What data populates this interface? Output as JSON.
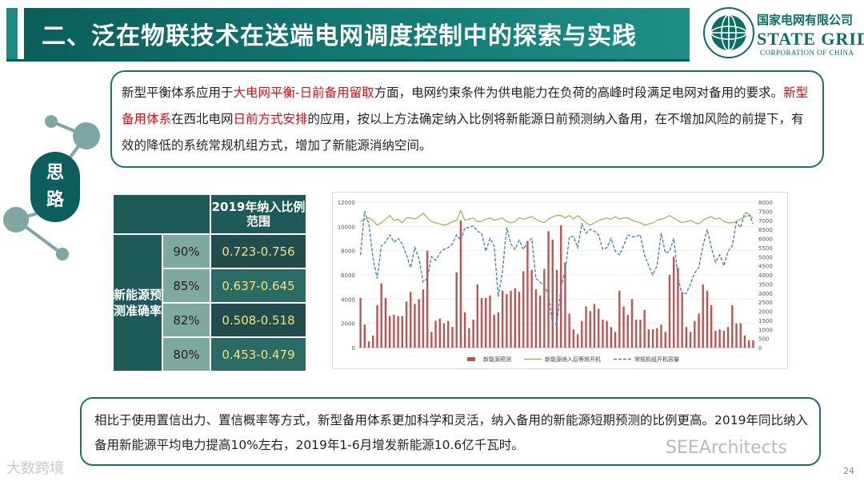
{
  "title": "二、泛在物联技术在送端电网调度控制中的探索与实践",
  "logo": {
    "cn_name": "国家电网有限公司",
    "en_name": "STATE GRID",
    "en_sub": "CORPORATION OF CHINA",
    "icon": "state-grid-globe-icon"
  },
  "badge": {
    "line1": "思",
    "line2": "路"
  },
  "idea": {
    "segments": [
      "新型平衡体系应用于",
      "大电网平衡-日前备用留取",
      "方面，电网约束条件为供电能力在负荷的高峰时段满足电网对备用的要求。",
      "新型备用体系",
      "在西北电网",
      "日前方式安排",
      "的应用，按以上方法确定纳入比例将新能源日前预测纳入备用，在不增加风险的前提下，有效的降低的系统常规机组方式，增加了新能源消纳空间。"
    ]
  },
  "table": {
    "header": "2019年纳入比例范围",
    "row_label": "新能源预测准确率",
    "rows": [
      {
        "pct": "90%",
        "range": "0.723-0.756"
      },
      {
        "pct": "85%",
        "range": "0.637-0.645"
      },
      {
        "pct": "82%",
        "range": "0.508-0.518"
      },
      {
        "pct": "80%",
        "range": "0.453-0.479"
      }
    ]
  },
  "chart_data": {
    "type": "bar",
    "title": "",
    "xlabel": "",
    "ylabel": "",
    "ylim": [
      0,
      12000
    ],
    "y2lim": [
      0,
      8000
    ],
    "yticks": [
      "0",
      "2000",
      "4000",
      "6000",
      "8000",
      "10000",
      "12000"
    ],
    "y2ticks": [
      "0",
      "500",
      "1000",
      "1500",
      "2000",
      "2500",
      "3000",
      "3500",
      "4000",
      "4500",
      "5000",
      "5500",
      "6000",
      "6500",
      "7000",
      "7500",
      "8000"
    ],
    "series": [
      {
        "name": "新能源预测",
        "type": "bar",
        "color": "#c0504d",
        "axis": "left",
        "values": [
          4100,
          1900,
          500,
          1000,
          3500,
          5300,
          4100,
          2600,
          2700,
          2600,
          2600,
          3800,
          4600,
          3600,
          4000,
          4800,
          8000,
          1300,
          2200,
          2400,
          2000,
          2200,
          1700,
          6200,
          10500,
          2900,
          1600,
          2300,
          5200,
          4100,
          4100,
          4300,
          2700,
          2900,
          4700,
          4400,
          4700,
          4900,
          4600,
          6300,
          8800,
          6400,
          4800,
          4300,
          6500,
          9600,
          8900,
          6400,
          10100,
          7000,
          2800,
          1500,
          1100,
          2200,
          3400,
          3000,
          3600,
          3200,
          2300,
          2200,
          1700,
          1300,
          4700,
          3400,
          2700,
          4000,
          2300,
          2300,
          3100,
          1500,
          1500,
          1600,
          1900,
          1300,
          6000,
          7500,
          6600,
          4600,
          1700,
          1300,
          2200,
          2800,
          5200,
          4700,
          3500,
          1400,
          1500,
          1400,
          1700,
          3500,
          2000,
          2000,
          1000,
          600,
          600
        ]
      },
      {
        "name": "新能源纳入后等效开机",
        "type": "line",
        "color": "#9bbb59",
        "axis": "left",
        "values": [
          10400,
          10600,
          10700,
          10500,
          10100,
          10300,
          10600,
          10900,
          10500,
          10600,
          10300,
          10700,
          10700,
          10600,
          10800,
          11100,
          10700,
          10400,
          10300,
          10200,
          10100,
          10200,
          10400,
          10500,
          11300,
          10500,
          10600,
          10700,
          10400,
          10400,
          10600,
          10700,
          10500,
          10600,
          10700,
          10400,
          10300,
          10400,
          10700,
          10600,
          10700,
          10800,
          10600,
          10400,
          10300,
          10600,
          10800,
          10900,
          10900,
          10700,
          10900,
          10600,
          10900,
          10600,
          10300,
          10100,
          10300,
          10500,
          10600,
          10700,
          10600,
          10800,
          10600,
          10700,
          10700,
          10500,
          10400,
          10300,
          10100,
          10200,
          10300,
          10500,
          10600,
          10700,
          10900,
          10700,
          10500,
          10300,
          10400,
          10500,
          10300,
          10200,
          10500,
          10700,
          10800,
          10600,
          10700,
          10400,
          10300,
          10300,
          10400,
          10600,
          10800,
          10900,
          10700
        ]
      },
      {
        "name": "常规机组开机容量",
        "type": "line-dashed",
        "color": "#4f81bd",
        "axis": "right",
        "values": [
          5100,
          7500,
          6800,
          4900,
          3800,
          5600,
          5800,
          6200,
          5800,
          6000,
          5700,
          5100,
          4400,
          5500,
          4900,
          3600,
          3800,
          5000,
          4800,
          5200,
          5400,
          5500,
          5700,
          6200,
          5900,
          6600,
          6600,
          6700,
          6400,
          6300,
          5300,
          6000,
          5600,
          2800,
          4200,
          6600,
          5700,
          5400,
          5900,
          5400,
          5800,
          6000,
          3800,
          3600,
          3400,
          2900,
          1300,
          1300,
          3300,
          4200,
          6100,
          6100,
          5500,
          6800,
          6300,
          6500,
          6400,
          6200,
          5400,
          5500,
          6000,
          5300,
          5100,
          5600,
          6200,
          6100,
          6100,
          6200,
          5100,
          4500,
          4000,
          4500,
          6300,
          5200,
          5300,
          6000,
          3900,
          2900,
          3000,
          3500,
          4100,
          4400,
          5600,
          6500,
          5500,
          4700,
          5100,
          4500,
          5300,
          5600,
          6900,
          6600,
          7400,
          7400,
          6800
        ]
      }
    ]
  },
  "conclusion": {
    "text": "相比于使用置信出力、置信概率等方式，新型备用体系更加科学和灵活，纳入备用的新能源短期预测的比例更高。2019年同比纳入备用新能源平均电力提高10%左右，2019年1-6月增发新能源10.6亿千瓦时。"
  },
  "page_number": "24",
  "watermarks": {
    "left": "大数跨境",
    "right": "SEEArchitects"
  }
}
